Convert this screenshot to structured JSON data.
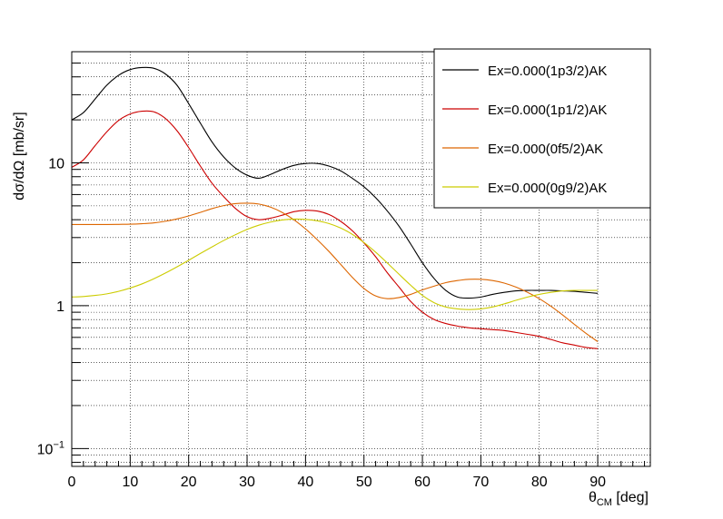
{
  "chart_data": {
    "type": "line",
    "title": "",
    "xlabel": {
      "symbol": "θ",
      "subscript": "CM",
      "unit": " [deg]"
    },
    "ylabel": "dσ/dΩ [mb/sr]",
    "xlim": [
      0,
      99
    ],
    "ylim": [
      0.075,
      60
    ],
    "yscale": "log",
    "grid": true,
    "legend_position": "top-right",
    "x_ticks": [
      "0",
      "10",
      "20",
      "30",
      "40",
      "50",
      "60",
      "70",
      "80",
      "90"
    ],
    "y_ticks": [
      {
        "value": 0.1,
        "base": "10",
        "exp": "−1"
      },
      {
        "value": 1,
        "base": "1",
        "exp": ""
      },
      {
        "value": 10,
        "base": "10",
        "exp": ""
      }
    ],
    "x": [
      0,
      2,
      4,
      6,
      8,
      10,
      12,
      14,
      16,
      18,
      20,
      22,
      24,
      26,
      28,
      30,
      32,
      34,
      36,
      38,
      40,
      42,
      44,
      46,
      48,
      50,
      52,
      54,
      56,
      58,
      60,
      62,
      64,
      66,
      68,
      70,
      72,
      74,
      76,
      78,
      80,
      82,
      84,
      86,
      88,
      90
    ],
    "series": [
      {
        "name": "Ex=0.000(1p3/2)AK",
        "color": "#000000",
        "values": [
          20.0,
          22.5,
          28,
          35,
          41,
          45,
          46.5,
          46,
          42,
          35,
          26,
          19,
          14,
          11,
          9.2,
          8.2,
          7.8,
          8.3,
          9.0,
          9.6,
          9.9,
          9.9,
          9.5,
          8.8,
          7.8,
          6.8,
          5.7,
          4.6,
          3.6,
          2.7,
          2.0,
          1.55,
          1.28,
          1.15,
          1.13,
          1.15,
          1.2,
          1.24,
          1.27,
          1.28,
          1.28,
          1.28,
          1.27,
          1.26,
          1.24,
          1.22
        ]
      },
      {
        "name": "Ex=0.000(1p1/2)AK",
        "color": "#cc0000",
        "values": [
          9.3,
          10.5,
          13.2,
          16.5,
          19.8,
          22.0,
          23.0,
          22.8,
          20.5,
          16.8,
          12.8,
          9.5,
          7.2,
          5.8,
          4.8,
          4.2,
          4.0,
          4.1,
          4.3,
          4.55,
          4.65,
          4.6,
          4.35,
          3.9,
          3.35,
          2.75,
          2.2,
          1.7,
          1.35,
          1.07,
          0.9,
          0.8,
          0.75,
          0.72,
          0.7,
          0.69,
          0.68,
          0.67,
          0.65,
          0.63,
          0.61,
          0.58,
          0.55,
          0.53,
          0.51,
          0.5
        ]
      },
      {
        "name": "Ex=0.000(0f5/2)AK",
        "color": "#dd6600",
        "values": [
          3.7,
          3.7,
          3.7,
          3.7,
          3.71,
          3.72,
          3.75,
          3.8,
          3.9,
          4.05,
          4.25,
          4.5,
          4.78,
          5.02,
          5.18,
          5.22,
          5.15,
          4.9,
          4.5,
          4.0,
          3.45,
          2.9,
          2.4,
          1.95,
          1.58,
          1.32,
          1.17,
          1.12,
          1.14,
          1.2,
          1.29,
          1.37,
          1.45,
          1.5,
          1.53,
          1.53,
          1.5,
          1.44,
          1.35,
          1.24,
          1.12,
          0.99,
          0.86,
          0.74,
          0.64,
          0.56
        ]
      },
      {
        "name": "Ex=0.000(0g9/2)AK",
        "color": "#cccc00",
        "values": [
          1.15,
          1.16,
          1.18,
          1.21,
          1.26,
          1.33,
          1.42,
          1.54,
          1.69,
          1.87,
          2.08,
          2.32,
          2.58,
          2.86,
          3.14,
          3.42,
          3.66,
          3.85,
          3.98,
          4.04,
          4.02,
          3.93,
          3.76,
          3.5,
          3.16,
          2.77,
          2.37,
          1.99,
          1.66,
          1.39,
          1.18,
          1.05,
          0.98,
          0.95,
          0.94,
          0.95,
          0.98,
          1.03,
          1.09,
          1.15,
          1.2,
          1.24,
          1.27,
          1.28,
          1.28,
          1.28
        ]
      }
    ]
  }
}
